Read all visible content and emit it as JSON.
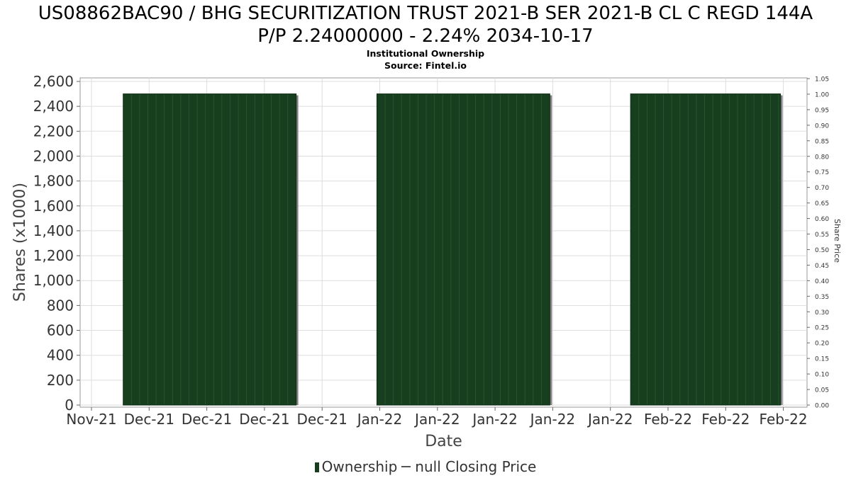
{
  "title_line1": "US08862BAC90 / BHG SECURITIZATION TRUST 2021-B SER 2021-B CL C REGD 144A",
  "title_line2": "P/P 2.24000000 - 2.24% 2034-10-17",
  "subtitle": "Institutional Ownership",
  "source": "Source: Fintel.io",
  "legend": {
    "ownership": "Ownership",
    "price": "null Closing Price"
  },
  "colors": {
    "bar": "#173f1f",
    "bar_shadow": "#808080",
    "grid": "#dddddd"
  },
  "chart_data": {
    "type": "bar",
    "title": "US08862BAC90 / BHG SECURITIZATION TRUST 2021-B SER 2021-B CL C REGD 144A P/P 2.24000000 - 2.24% 2034-10-17",
    "subtitle": "Institutional Ownership",
    "xlabel": "Date",
    "ylabel": "Shares (x1000)",
    "y2label": "Share Price",
    "x_ticks": [
      "Nov-21",
      "Dec-21",
      "Dec-21",
      "Dec-21",
      "Dec-21",
      "Jan-22",
      "Jan-22",
      "Jan-22",
      "Jan-22",
      "Jan-22",
      "Feb-22",
      "Feb-22",
      "Feb-22"
    ],
    "y_ticks": [
      "0",
      "200",
      "400",
      "600",
      "800",
      "1,000",
      "1,200",
      "1,400",
      "1,600",
      "1,800",
      "2,000",
      "2,200",
      "2,400",
      "2,600"
    ],
    "y2_ticks": [
      "0.00",
      "0.05",
      "0.10",
      "0.15",
      "0.20",
      "0.25",
      "0.30",
      "0.35",
      "0.40",
      "0.45",
      "0.50",
      "0.55",
      "0.60",
      "0.65",
      "0.70",
      "0.75",
      "0.80",
      "0.85",
      "0.90",
      "0.95",
      "1.00",
      "1.05"
    ],
    "ylim": [
      0,
      2600
    ],
    "y2lim": [
      0,
      1.05
    ],
    "grid": true,
    "legend_position": "bottom",
    "series": [
      {
        "name": "Ownership",
        "blocks": [
          {
            "start_tick": 0.55,
            "end_tick": 3.55,
            "value": 2500
          },
          {
            "start_tick": 4.95,
            "end_tick": 7.95,
            "value": 2500
          },
          {
            "start_tick": 9.35,
            "end_tick": 11.95,
            "value": 2500
          }
        ]
      },
      {
        "name": "null Closing Price",
        "values": []
      }
    ]
  }
}
